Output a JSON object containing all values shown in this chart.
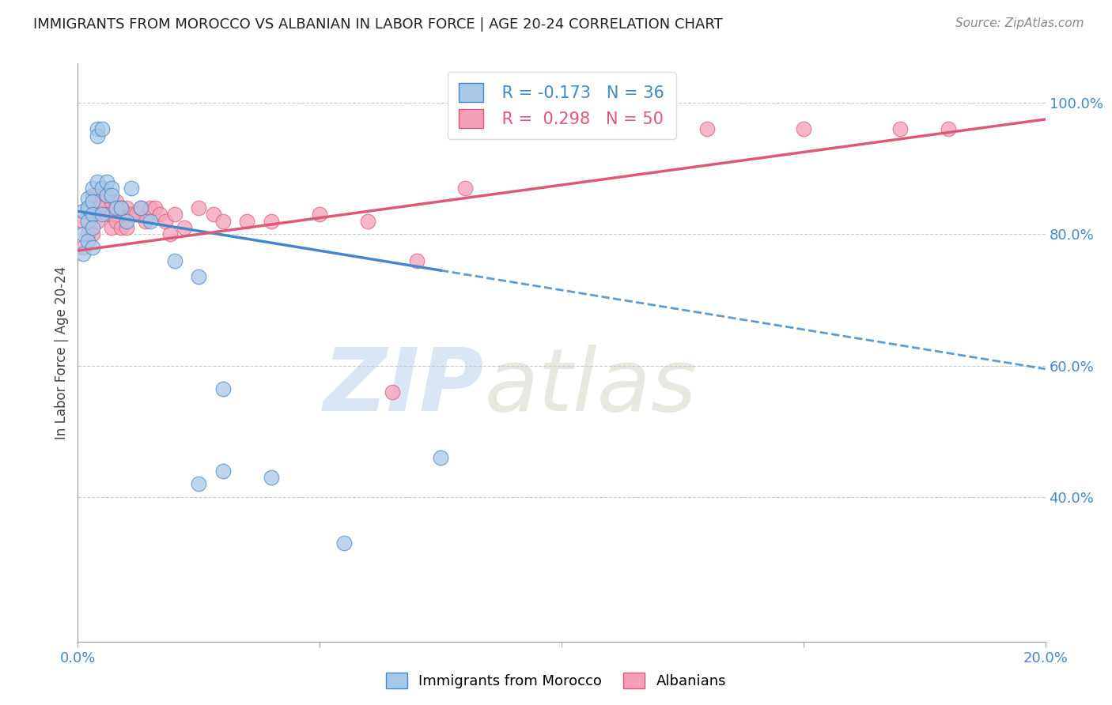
{
  "title": "IMMIGRANTS FROM MOROCCO VS ALBANIAN IN LABOR FORCE | AGE 20-24 CORRELATION CHART",
  "source": "Source: ZipAtlas.com",
  "ylabel": "In Labor Force | Age 20-24",
  "watermark_left": "ZIP",
  "watermark_right": "atlas",
  "legend_blue_r": "R = -0.173",
  "legend_blue_n": "N = 36",
  "legend_pink_r": "R =  0.298",
  "legend_pink_n": "N = 50",
  "legend_blue_label": "Immigrants from Morocco",
  "legend_pink_label": "Albanians",
  "xlim": [
    0.0,
    0.2
  ],
  "ylim": [
    0.18,
    1.06
  ],
  "xticks": [
    0.0,
    0.05,
    0.1,
    0.15,
    0.2
  ],
  "xtick_labels": [
    "0.0%",
    "",
    "",
    "",
    "20.0%"
  ],
  "yticks_right": [
    0.4,
    0.6,
    0.8,
    1.0
  ],
  "ytick_labels_right": [
    "40.0%",
    "60.0%",
    "80.0%",
    "100.0%"
  ],
  "blue_color": "#a8c8e8",
  "pink_color": "#f4a0b8",
  "trend_blue_color": "#4488cc",
  "trend_pink_color": "#e05878",
  "axis_color": "#4488cc",
  "title_color": "#222222",
  "source_color": "#888888",
  "background_color": "#ffffff",
  "grid_color": "#cccccc",
  "morocco_x": [
    0.001,
    0.001,
    0.001,
    0.002,
    0.002,
    0.002,
    0.002,
    0.003,
    0.003,
    0.003,
    0.003,
    0.003,
    0.004,
    0.004,
    0.004,
    0.005,
    0.005,
    0.005,
    0.006,
    0.006,
    0.007,
    0.007,
    0.008,
    0.009,
    0.01,
    0.011,
    0.013,
    0.015,
    0.02,
    0.025,
    0.03,
    0.04,
    0.055,
    0.075,
    0.03,
    0.025
  ],
  "morocco_y": [
    0.835,
    0.8,
    0.77,
    0.855,
    0.84,
    0.82,
    0.79,
    0.87,
    0.85,
    0.83,
    0.81,
    0.78,
    0.96,
    0.95,
    0.88,
    0.96,
    0.87,
    0.83,
    0.88,
    0.86,
    0.87,
    0.86,
    0.84,
    0.84,
    0.82,
    0.87,
    0.84,
    0.82,
    0.76,
    0.735,
    0.565,
    0.43,
    0.33,
    0.46,
    0.44,
    0.42
  ],
  "albanian_x": [
    0.001,
    0.001,
    0.002,
    0.002,
    0.003,
    0.003,
    0.003,
    0.004,
    0.004,
    0.005,
    0.005,
    0.006,
    0.006,
    0.007,
    0.007,
    0.007,
    0.008,
    0.008,
    0.009,
    0.009,
    0.01,
    0.01,
    0.011,
    0.012,
    0.013,
    0.014,
    0.015,
    0.016,
    0.017,
    0.018,
    0.019,
    0.02,
    0.022,
    0.025,
    0.028,
    0.03,
    0.035,
    0.04,
    0.05,
    0.06,
    0.065,
    0.07,
    0.08,
    0.09,
    0.1,
    0.11,
    0.13,
    0.15,
    0.17,
    0.18
  ],
  "albanian_y": [
    0.82,
    0.78,
    0.84,
    0.8,
    0.86,
    0.83,
    0.8,
    0.85,
    0.82,
    0.87,
    0.84,
    0.86,
    0.83,
    0.85,
    0.83,
    0.81,
    0.85,
    0.82,
    0.84,
    0.81,
    0.84,
    0.81,
    0.83,
    0.83,
    0.84,
    0.82,
    0.84,
    0.84,
    0.83,
    0.82,
    0.8,
    0.83,
    0.81,
    0.84,
    0.83,
    0.82,
    0.82,
    0.82,
    0.83,
    0.82,
    0.56,
    0.76,
    0.87,
    0.96,
    0.96,
    0.96,
    0.96,
    0.96,
    0.96,
    0.96
  ],
  "trend_blue_x0": 0.0,
  "trend_blue_y0": 0.835,
  "trend_blue_x1": 0.2,
  "trend_blue_y1": 0.595,
  "trend_blue_solid_end": 0.075,
  "trend_pink_x0": 0.0,
  "trend_pink_y0": 0.775,
  "trend_pink_x1": 0.2,
  "trend_pink_y1": 0.975
}
